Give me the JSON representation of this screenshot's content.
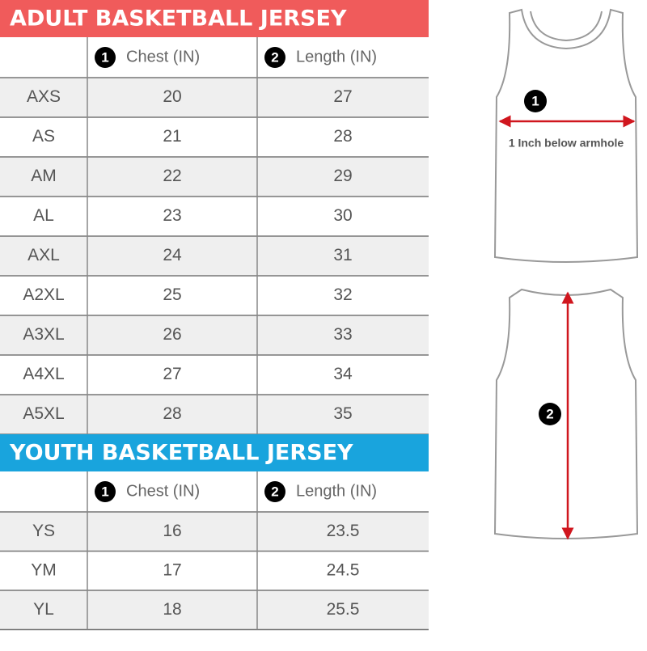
{
  "adult": {
    "title": "ADULT BASKETBALL JERSEY",
    "header": [
      {
        "marker": "1",
        "label": "Chest (IN)"
      },
      {
        "marker": "2",
        "label": "Length (IN)"
      }
    ],
    "rows": [
      [
        "AXS",
        "20",
        "27"
      ],
      [
        "AS",
        "21",
        "28"
      ],
      [
        "AM",
        "22",
        "29"
      ],
      [
        "AL",
        "23",
        "30"
      ],
      [
        "AXL",
        "24",
        "31"
      ],
      [
        "A2XL",
        "25",
        "32"
      ],
      [
        "A3XL",
        "26",
        "33"
      ],
      [
        "A4XL",
        "27",
        "34"
      ],
      [
        "A5XL",
        "28",
        "35"
      ]
    ]
  },
  "youth": {
    "title": "YOUTH BASKETBALL JERSEY",
    "header": [
      {
        "marker": "1",
        "label": "Chest (IN)"
      },
      {
        "marker": "2",
        "label": "Length (IN)"
      }
    ],
    "rows": [
      [
        "YS",
        "16",
        "23.5"
      ],
      [
        "YM",
        "17",
        "24.5"
      ],
      [
        "YL",
        "18",
        "25.5"
      ]
    ]
  },
  "diagram": {
    "front": {
      "marker": "1",
      "note": "1 Inch below armhole"
    },
    "back": {
      "marker": "2"
    }
  }
}
